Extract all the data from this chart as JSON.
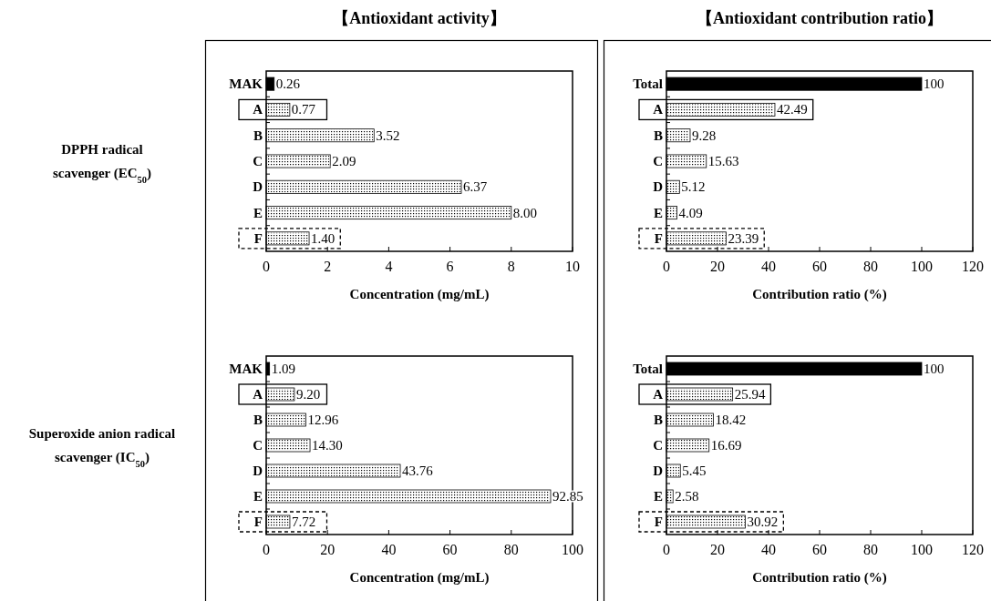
{
  "chart_data": [
    {
      "type": "bar",
      "orientation": "horizontal",
      "title": "【Antioxidant activity】",
      "xlabel": "Concentration (mg/mL)",
      "annotations": [
        "DPPH radical\nscavenger (EC$_{50}$)"
      ],
      "categories": [
        "MAK",
        "A",
        "B",
        "C",
        "D",
        "E",
        "F"
      ],
      "values": [
        0.26,
        0.77,
        3.52,
        2.09,
        6.37,
        8.0,
        1.4
      ],
      "value_labels": [
        "0.26",
        "0.77",
        "3.52",
        "2.09",
        "6.37",
        "8.00",
        "1.40"
      ],
      "colors": [
        "#000000",
        "#ffffff",
        "#ffffff",
        "#ffffff",
        "#ffffff",
        "#ffffff",
        "#ffffff"
      ],
      "xlim": [
        0,
        10
      ],
      "xticks": [
        0,
        2,
        4,
        6,
        8,
        10
      ]
    },
    {
      "type": "bar",
      "orientation": "horizontal",
      "xlabel": "Concentration (mg/mL)",
      "annotations": [
        "Superoxide anion radical\nscavenger (IC$_{50}$)"
      ],
      "categories": [
        "MAK",
        "A",
        "B",
        "C",
        "D",
        "E",
        "F"
      ],
      "values": [
        1.09,
        9.2,
        12.96,
        14.3,
        43.76,
        92.85,
        7.72
      ],
      "value_labels": [
        "1.09",
        "9.20",
        "12.96",
        "14.30",
        "43.76",
        "92.85",
        "7.72"
      ],
      "colors": [
        "#000000",
        "#ffffff",
        "#ffffff",
        "#ffffff",
        "#ffffff",
        "#ffffff",
        "#ffffff"
      ],
      "xlim": [
        0,
        100
      ],
      "xticks": [
        0,
        20,
        40,
        60,
        80,
        100
      ]
    },
    {
      "type": "bar",
      "orientation": "horizontal",
      "title": "【Antioxidant contribution ratio】",
      "xlabel": "Contribution ratio (%)",
      "categories": [
        "Total",
        "A",
        "B",
        "C",
        "D",
        "E",
        "F"
      ],
      "values": [
        100,
        42.49,
        9.28,
        15.63,
        5.12,
        4.09,
        23.39
      ],
      "value_labels": [
        "100",
        "42.49",
        "9.28",
        "15.63",
        "5.12",
        "4.09",
        "23.39"
      ],
      "colors": [
        "#000000",
        "#ffffff",
        "#ffffff",
        "#ffffff",
        "#ffffff",
        "#ffffff",
        "#ffffff"
      ],
      "xlim": [
        0,
        120
      ],
      "xticks": [
        0,
        20,
        40,
        60,
        80,
        100,
        120
      ]
    },
    {
      "type": "bar",
      "orientation": "horizontal",
      "xlabel": "Contribution ratio (%)",
      "categories": [
        "Total",
        "A",
        "B",
        "C",
        "D",
        "E",
        "F"
      ],
      "values": [
        100,
        25.94,
        18.42,
        16.69,
        5.45,
        2.58,
        30.92
      ],
      "value_labels": [
        "100",
        "25.94",
        "18.42",
        "16.69",
        "5.45",
        "2.58",
        "30.92"
      ],
      "colors": [
        "#000000",
        "#ffffff",
        "#ffffff",
        "#ffffff",
        "#ffffff",
        "#ffffff",
        "#ffffff"
      ],
      "xlim": [
        0,
        120
      ],
      "xticks": [
        0,
        20,
        40,
        60,
        80,
        100,
        120
      ]
    }
  ]
}
